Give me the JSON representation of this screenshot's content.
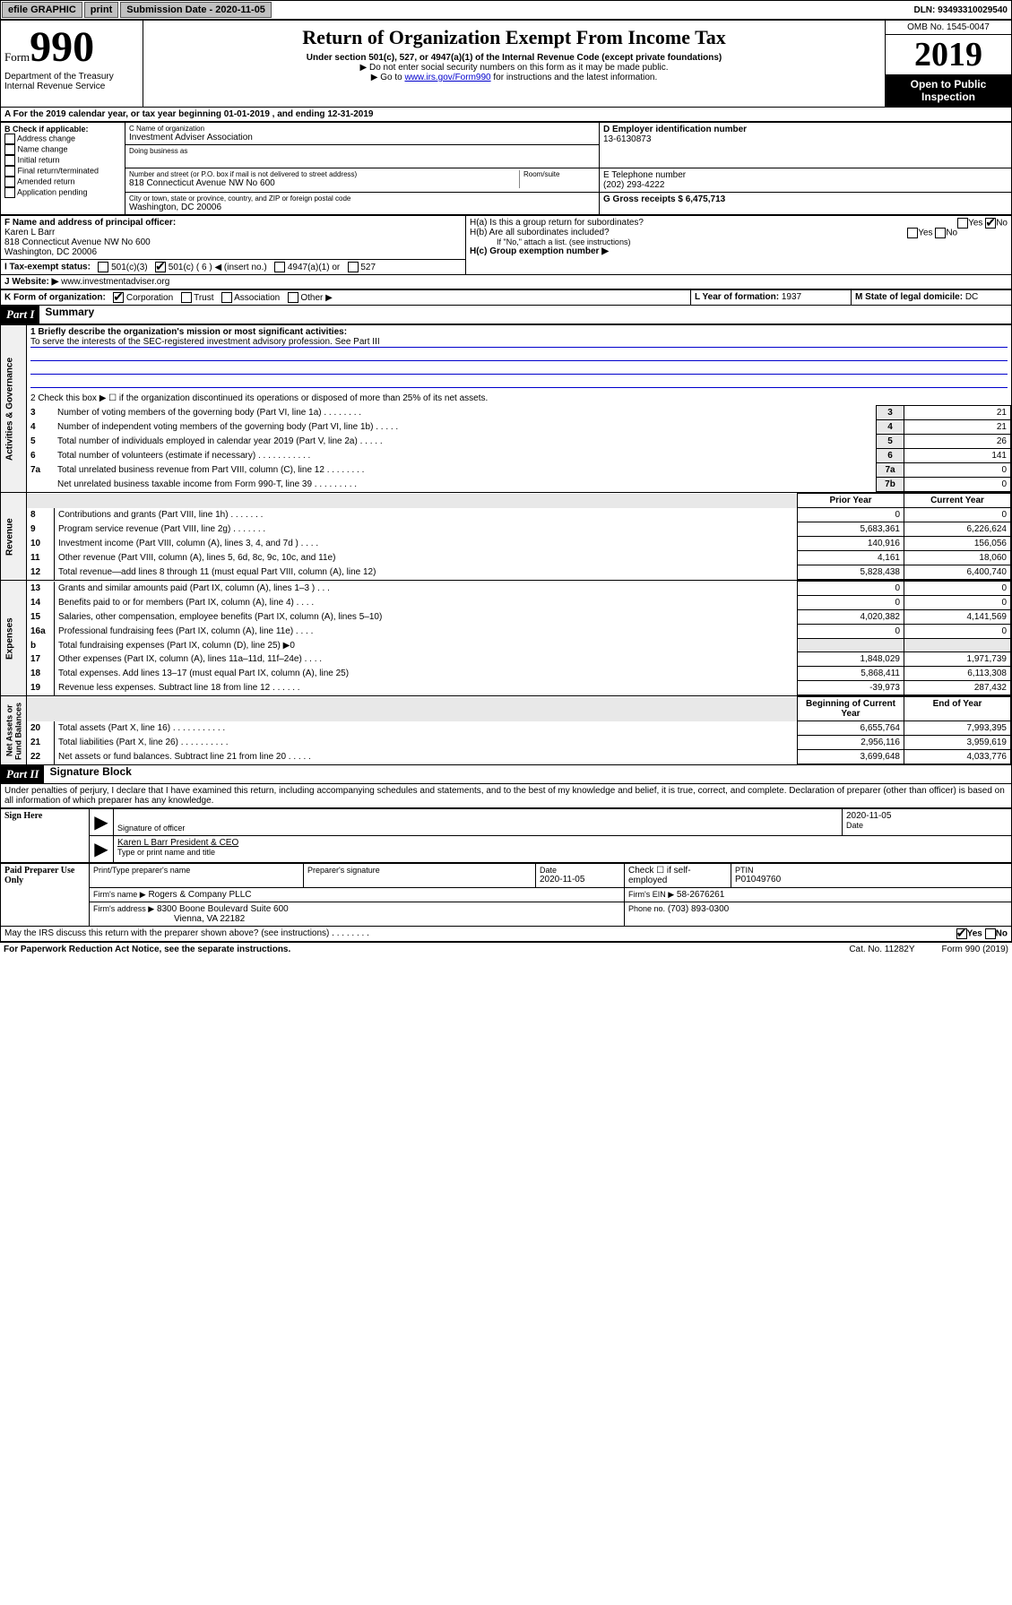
{
  "topbar": {
    "efile": "efile GRAPHIC",
    "print": "print",
    "subdate_label": "Submission Date - 2020-11-05",
    "dln": "DLN: 93493310029540"
  },
  "header": {
    "form_word": "Form",
    "form_num": "990",
    "dept": "Department of the Treasury\nInternal Revenue Service",
    "title": "Return of Organization Exempt From Income Tax",
    "subtitle": "Under section 501(c), 527, or 4947(a)(1) of the Internal Revenue Code (except private foundations)",
    "note1": "▶ Do not enter social security numbers on this form as it may be made public.",
    "note2_pre": "▶ Go to ",
    "note2_link": "www.irs.gov/Form990",
    "note2_post": " for instructions and the latest information.",
    "omb": "OMB No. 1545-0047",
    "year": "2019",
    "open": "Open to Public Inspection"
  },
  "line_a": "A For the 2019 calendar year, or tax year beginning 01-01-2019   , and ending 12-31-2019",
  "box_b": {
    "label": "B Check if applicable:",
    "items": [
      "Address change",
      "Name change",
      "Initial return",
      "Final return/terminated",
      "Amended return",
      "Application pending"
    ]
  },
  "box_c": {
    "label": "C Name of organization",
    "name": "Investment Adviser Association",
    "dba_label": "Doing business as",
    "addr_label": "Number and street (or P.O. box if mail is not delivered to street address)",
    "room_label": "Room/suite",
    "addr": "818 Connecticut Avenue NW No 600",
    "city_label": "City or town, state or province, country, and ZIP or foreign postal code",
    "city": "Washington, DC  20006"
  },
  "box_d": {
    "label": "D Employer identification number",
    "value": "13-6130873"
  },
  "box_e": {
    "label": "E Telephone number",
    "value": "(202) 293-4222"
  },
  "box_g": {
    "label": "G Gross receipts $ 6,475,713"
  },
  "box_f": {
    "label": "F  Name and address of principal officer:",
    "name": "Karen L Barr",
    "addr1": "818 Connecticut Avenue NW No 600",
    "addr2": "Washington, DC  20006"
  },
  "box_h": {
    "ha": "H(a)  Is this a group return for subordinates?",
    "hb": "H(b)  Are all subordinates included?",
    "hb_note": "If \"No,\" attach a list. (see instructions)",
    "hc": "H(c)  Group exemption number ▶"
  },
  "tax_status_label": "I    Tax-exempt status:",
  "tax_status_opts": [
    "501(c)(3)",
    "501(c) ( 6 ) ◀ (insert no.)",
    "4947(a)(1) or",
    "527"
  ],
  "website_label": "J    Website: ▶",
  "website": "www.investmentadviser.org",
  "line_k": "K Form of organization:",
  "k_opts": [
    "Corporation",
    "Trust",
    "Association",
    "Other ▶"
  ],
  "line_l": {
    "label": "L Year of formation:",
    "value": "1937"
  },
  "line_m": {
    "label": "M State of legal domicile:",
    "value": "DC"
  },
  "part1": {
    "hdr": "Part I",
    "title": "Summary"
  },
  "mission_label": "1  Briefly describe the organization's mission or most significant activities:",
  "mission": "To serve the interests of the SEC-registered investment advisory profession. See Part III",
  "line2": "2   Check this box ▶ ☐  if the organization discontinued its operations or disposed of more than 25% of its net assets.",
  "gov_lines": [
    {
      "n": "3",
      "t": "Number of voting members of the governing body (Part VI, line 1a)  .   .   .   .   .   .   .   .",
      "box": "3",
      "v": "21"
    },
    {
      "n": "4",
      "t": "Number of independent voting members of the governing body (Part VI, line 1b)   .   .   .   .   .",
      "box": "4",
      "v": "21"
    },
    {
      "n": "5",
      "t": "Total number of individuals employed in calendar year 2019 (Part V, line 2a)    .    .    .    .    .",
      "box": "5",
      "v": "26"
    },
    {
      "n": "6",
      "t": "Total number of volunteers (estimate if necessary)   .    .    .    .    .    .    .    .    .    .    .",
      "box": "6",
      "v": "141"
    },
    {
      "n": "7a",
      "t": "Total unrelated business revenue from Part VIII, column (C), line 12   .   .   .   .   .   .   .   .",
      "box": "7a",
      "v": "0"
    },
    {
      "n": "",
      "t": "Net unrelated business taxable income from Form 990-T, line 39   .   .   .   .   .   .   .   .   .",
      "box": "7b",
      "v": "0"
    }
  ],
  "col_hdrs": {
    "prior": "Prior Year",
    "current": "Current Year",
    "beg": "Beginning of Current Year",
    "end": "End of Year"
  },
  "revenue": [
    {
      "n": "8",
      "t": "Contributions and grants (Part VIII, line 1h)   .   .   .   .   .   .   .",
      "p": "0",
      "c": "0"
    },
    {
      "n": "9",
      "t": "Program service revenue (Part VIII, line 2g)    .   .   .   .   .   .   .",
      "p": "5,683,361",
      "c": "6,226,624"
    },
    {
      "n": "10",
      "t": "Investment income (Part VIII, column (A), lines 3, 4, and 7d )   .   .   .   .",
      "p": "140,916",
      "c": "156,056"
    },
    {
      "n": "11",
      "t": "Other revenue (Part VIII, column (A), lines 5, 6d, 8c, 9c, 10c, and 11e)",
      "p": "4,161",
      "c": "18,060"
    },
    {
      "n": "12",
      "t": "Total revenue—add lines 8 through 11 (must equal Part VIII, column (A), line 12)",
      "p": "5,828,438",
      "c": "6,400,740"
    }
  ],
  "expenses": [
    {
      "n": "13",
      "t": "Grants and similar amounts paid (Part IX, column (A), lines 1–3 )   .   .   .",
      "p": "0",
      "c": "0"
    },
    {
      "n": "14",
      "t": "Benefits paid to or for members (Part IX, column (A), line 4)   .   .   .   .",
      "p": "0",
      "c": "0"
    },
    {
      "n": "15",
      "t": "Salaries, other compensation, employee benefits (Part IX, column (A), lines 5–10)",
      "p": "4,020,382",
      "c": "4,141,569"
    },
    {
      "n": "16a",
      "t": "Professional fundraising fees (Part IX, column (A), line 11e)    .    .    .    .",
      "p": "0",
      "c": "0"
    },
    {
      "n": "b",
      "t": "Total fundraising expenses (Part IX, column (D), line 25) ▶0",
      "p": "",
      "c": "",
      "shade": true
    },
    {
      "n": "17",
      "t": "Other expenses (Part IX, column (A), lines 11a–11d, 11f–24e)  .   .   .   .",
      "p": "1,848,029",
      "c": "1,971,739"
    },
    {
      "n": "18",
      "t": "Total expenses. Add lines 13–17 (must equal Part IX, column (A), line 25)",
      "p": "5,868,411",
      "c": "6,113,308"
    },
    {
      "n": "19",
      "t": "Revenue less expenses. Subtract line 18 from line 12    .    .    .    .    .    .",
      "p": "-39,973",
      "c": "287,432"
    }
  ],
  "netassets": [
    {
      "n": "20",
      "t": "Total assets (Part X, line 16)   .    .    .    .    .    .    .    .    .    .    .",
      "p": "6,655,764",
      "c": "7,993,395"
    },
    {
      "n": "21",
      "t": "Total liabilities (Part X, line 26)   .    .    .    .    .    .    .    .    .    .",
      "p": "2,956,116",
      "c": "3,959,619"
    },
    {
      "n": "22",
      "t": "Net assets or fund balances. Subtract line 21 from line 20   .   .   .   .   .",
      "p": "3,699,648",
      "c": "4,033,776"
    }
  ],
  "sidebar": {
    "gov": "Activities & Governance",
    "rev": "Revenue",
    "exp": "Expenses",
    "net": "Net Assets or\nFund Balances"
  },
  "part2": {
    "hdr": "Part II",
    "title": "Signature Block"
  },
  "perjury": "Under penalties of perjury, I declare that I have examined this return, including accompanying schedules and statements, and to the best of my knowledge and belief, it is true, correct, and complete. Declaration of preparer (other than officer) is based on all information of which preparer has any knowledge.",
  "sign": {
    "here": "Sign Here",
    "sig_label": "Signature of officer",
    "date": "2020-11-05",
    "date_label": "Date",
    "name": "Karen L Barr President & CEO",
    "name_label": "Type or print name and title"
  },
  "paid": {
    "label": "Paid Preparer Use Only",
    "col1": "Print/Type preparer's name",
    "col2": "Preparer's signature",
    "col3": "Date",
    "col3v": "2020-11-05",
    "col4": "Check ☐ if self-employed",
    "col5": "PTIN",
    "ptin": "P01049760",
    "firm_label": "Firm's name    ▶",
    "firm": "Rogers & Company PLLC",
    "ein_label": "Firm's EIN ▶",
    "ein": "58-2676261",
    "addr_label": "Firm's address ▶",
    "addr1": "8300 Boone Boulevard Suite 600",
    "addr2": "Vienna, VA  22182",
    "phone_label": "Phone no.",
    "phone": "(703) 893-0300"
  },
  "discuss": "May the IRS discuss this return with the preparer shown above? (see instructions)    .    .    .    .    .    .    .    .",
  "footer": {
    "left": "For Paperwork Reduction Act Notice, see the separate instructions.",
    "cat": "Cat. No. 11282Y",
    "right": "Form 990 (2019)"
  },
  "colors": {
    "link": "#0000cc",
    "shade": "#e8e8e8"
  }
}
